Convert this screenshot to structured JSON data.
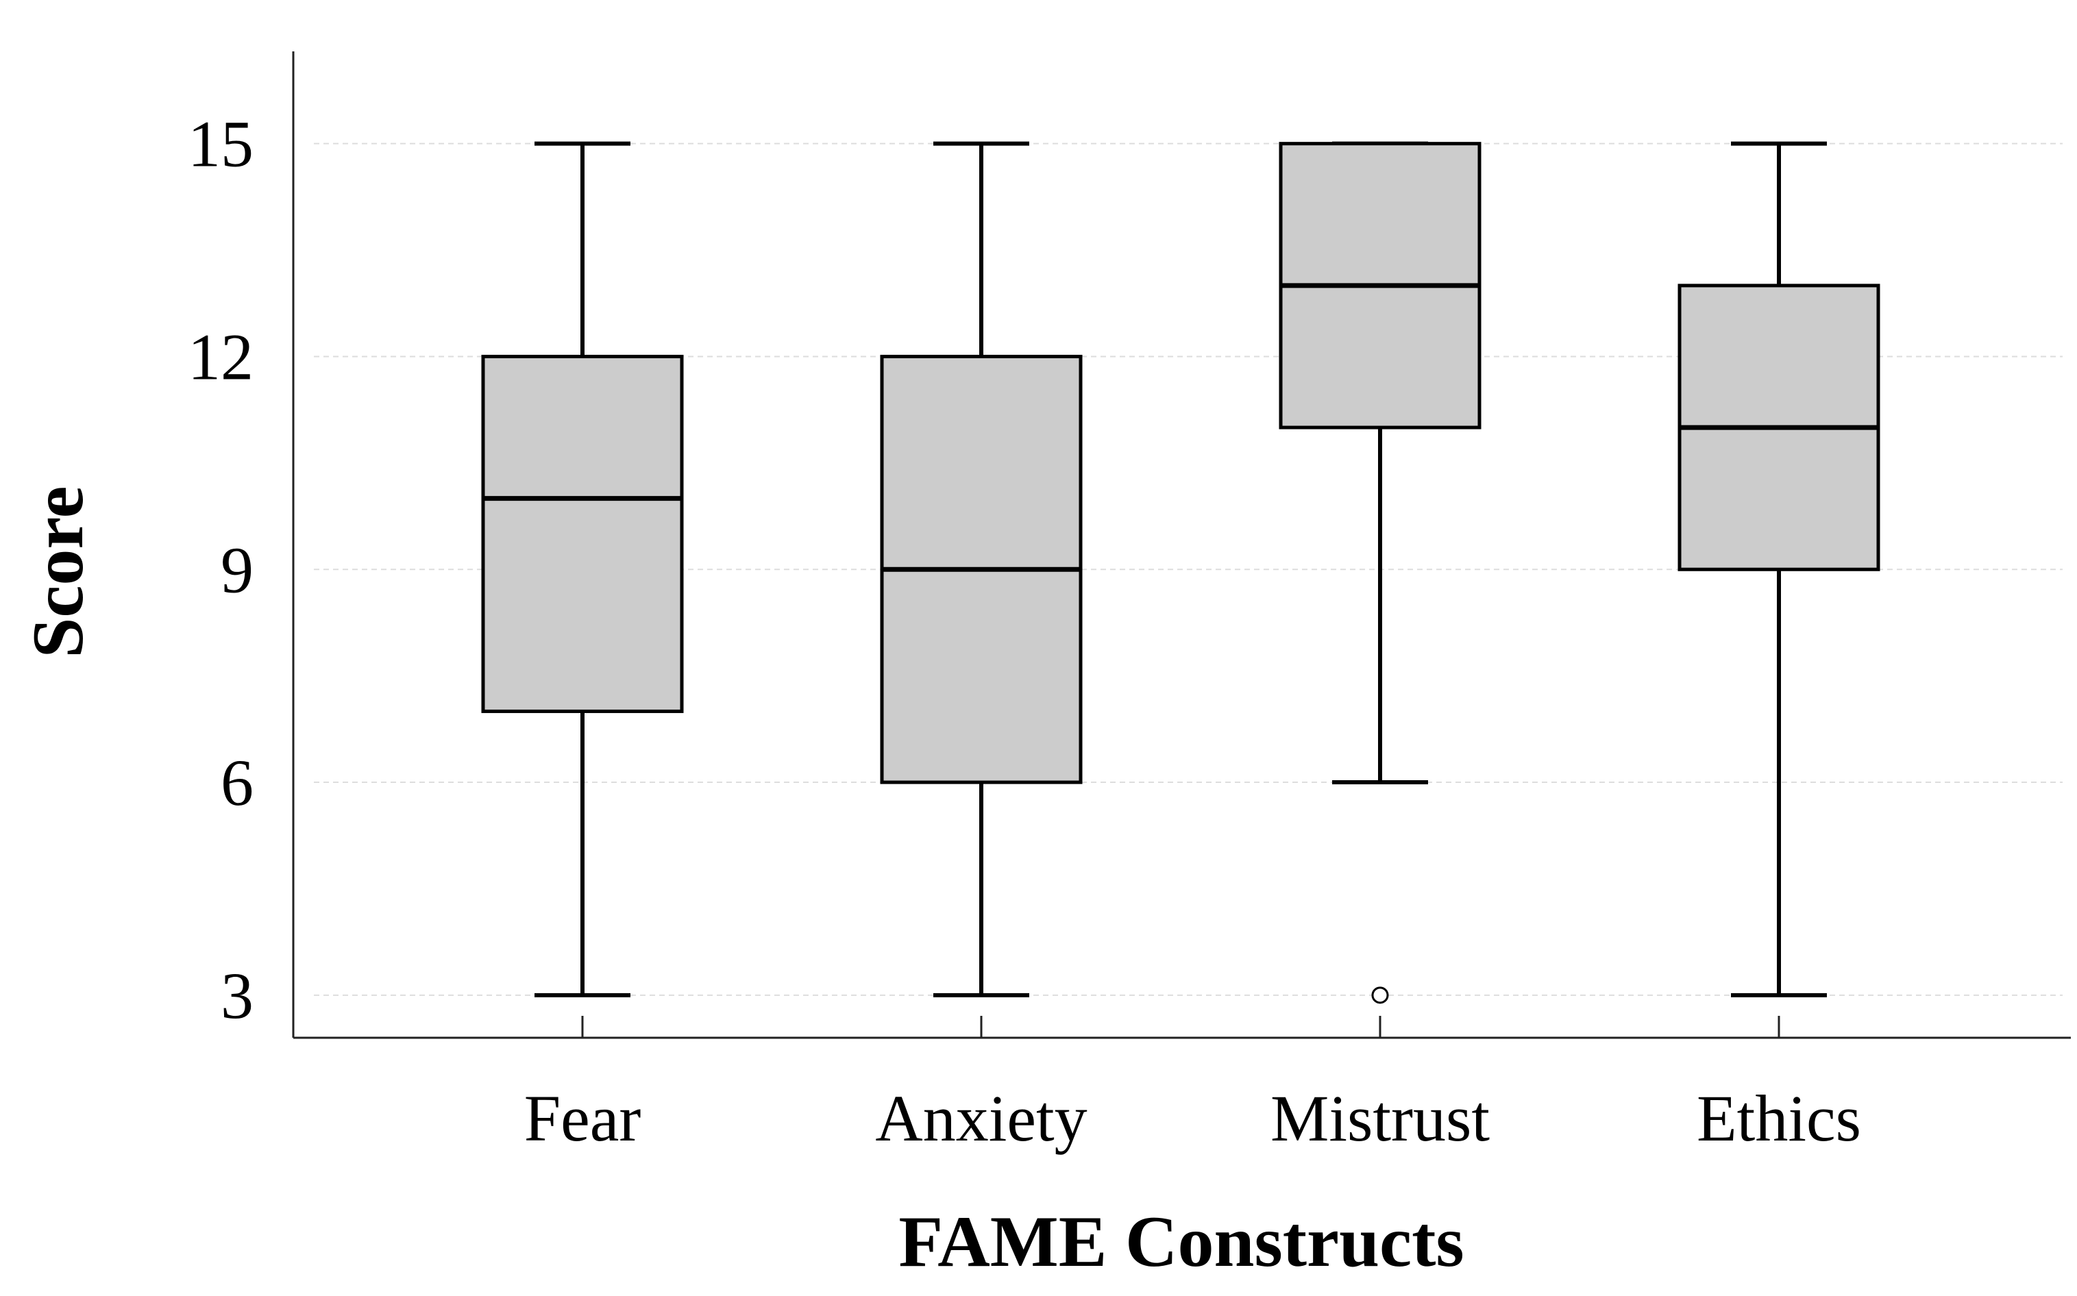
{
  "chart_data": {
    "type": "box",
    "xlabel": "FAME Constructs",
    "ylabel": "Score",
    "ylim": [
      2.4,
      16.3
    ],
    "yticks": [
      3,
      6,
      9,
      12,
      15
    ],
    "grid": true,
    "box_fill": "#cccccc",
    "categories": [
      "Fear",
      "Anxiety",
      "Mistrust",
      "Ethics"
    ],
    "boxes": [
      {
        "name": "Fear",
        "min": 3,
        "q1": 7,
        "median": 10,
        "q3": 12,
        "max": 15,
        "outliers": []
      },
      {
        "name": "Anxiety",
        "min": 3,
        "q1": 6,
        "median": 9,
        "q3": 12,
        "max": 15,
        "outliers": []
      },
      {
        "name": "Mistrust",
        "min": 6,
        "q1": 11,
        "median": 13,
        "q3": 15,
        "max": 15,
        "outliers": [
          3
        ]
      },
      {
        "name": "Ethics",
        "min": 3,
        "q1": 9,
        "median": 11,
        "q3": 13,
        "max": 15,
        "outliers": []
      }
    ]
  }
}
